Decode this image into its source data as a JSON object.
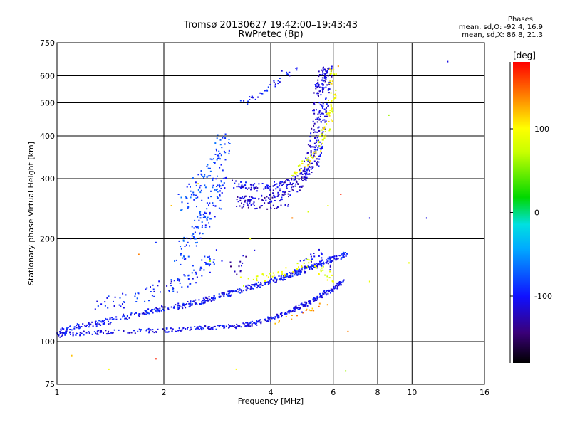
{
  "header": {
    "title_line1": "Tromsø 20130627 19:42:00–19:43:43",
    "title_line2": "RwPretec (8p)"
  },
  "phase_info": {
    "heading": "Phases",
    "line1": "mean, sd,O: -92.4, 16.9",
    "line2": "mean, sd,X: 86.8, 21.3"
  },
  "colorbar": {
    "unit_label": "[deg]",
    "range": [
      -180,
      180
    ],
    "ticks": [
      {
        "value": 100,
        "label": "100"
      },
      {
        "value": 0,
        "label": "0"
      },
      {
        "value": -100,
        "label": "-100"
      }
    ]
  },
  "chart_data": {
    "type": "scatter",
    "title": "Tromsø 20130627 19:42:00–19:43:43",
    "subtitle": "RwPretec (8p)",
    "xlabel": "Frequency [MHz]",
    "ylabel": "Stationary phase Virtual Height [km]",
    "xscale": "log",
    "yscale": "log",
    "xlim": [
      1,
      16
    ],
    "ylim": [
      75,
      750
    ],
    "xticks": [
      1,
      2,
      4,
      6,
      8,
      10,
      16
    ],
    "yticks": [
      75,
      100,
      200,
      300,
      400,
      500,
      600,
      750
    ],
    "grid": true,
    "color_encodes": "phase [deg]",
    "phase_stats": {
      "O": {
        "mean": -92.4,
        "sd": 16.9
      },
      "X": {
        "mean": 86.8,
        "sd": 21.3
      }
    },
    "series": [
      {
        "traces": [
          {
            "pts": [
              [
                1.0,
                105
              ],
              [
                1.1,
                110
              ],
              [
                1.3,
                113
              ],
              [
                1.5,
                117
              ],
              [
                1.8,
                122
              ],
              [
                2.0,
                125
              ],
              [
                2.3,
                128
              ],
              [
                2.6,
                132
              ],
              [
                2.9,
                136
              ],
              [
                3.2,
                140
              ],
              [
                3.6,
                145
              ],
              [
                4.0,
                150
              ],
              [
                4.4,
                155
              ],
              [
                4.8,
                160
              ],
              [
                5.2,
                165
              ],
              [
                5.6,
                170
              ],
              [
                6.0,
                175
              ],
              [
                6.5,
                180
              ]
            ],
            "phase": -100,
            "spread": 0.018,
            "density": 30
          },
          {
            "pts": [
              [
                1.0,
                104
              ],
              [
                1.2,
                106
              ],
              [
                1.6,
                107
              ],
              [
                2.0,
                108
              ],
              [
                2.4,
                109
              ],
              [
                2.8,
                110
              ],
              [
                3.2,
                111
              ],
              [
                3.6,
                113
              ],
              [
                4.0,
                117
              ],
              [
                4.4,
                121
              ],
              [
                4.8,
                126
              ],
              [
                5.2,
                131
              ],
              [
                5.6,
                137
              ],
              [
                6.0,
                143
              ],
              [
                6.4,
                150
              ]
            ],
            "phase": -105,
            "spread": 0.014,
            "density": 28
          },
          {
            "pts": [
              [
                1.3,
                127
              ],
              [
                1.6,
                134
              ],
              [
                2.0,
                143
              ],
              [
                2.3,
                150
              ],
              [
                2.6,
                165
              ],
              [
                2.8,
                180
              ]
            ],
            "phase": -95,
            "spread": 0.05,
            "density": 20
          },
          {
            "pts": [
              [
                2.3,
                250
              ],
              [
                2.5,
                280
              ],
              [
                2.7,
                320
              ],
              [
                2.9,
                360
              ],
              [
                3.0,
                390
              ]
            ],
            "phase": -80,
            "spread": 0.06,
            "density": 24
          },
          {
            "pts": [
              [
                2.2,
                170
              ],
              [
                2.4,
                200
              ],
              [
                2.6,
                230
              ],
              [
                2.8,
                260
              ],
              [
                2.9,
                300
              ]
            ],
            "phase": -85,
            "spread": 0.05,
            "density": 30
          },
          {
            "pts": [
              [
                3.2,
                290
              ],
              [
                3.5,
                285
              ],
              [
                4.0,
                283
              ],
              [
                4.5,
                290
              ],
              [
                5.0,
                305
              ],
              [
                5.3,
                330
              ],
              [
                5.5,
                380
              ],
              [
                5.6,
                450
              ],
              [
                5.7,
                520
              ],
              [
                5.75,
                600
              ],
              [
                5.8,
                640
              ]
            ],
            "phase": -110,
            "spread": 0.03,
            "density": 26
          },
          {
            "pts": [
              [
                3.2,
                260
              ],
              [
                3.5,
                258
              ],
              [
                4.0,
                262
              ],
              [
                4.4,
                270
              ],
              [
                4.8,
                290
              ],
              [
                5.1,
                330
              ],
              [
                5.3,
                400
              ],
              [
                5.4,
                480
              ],
              [
                5.5,
                560
              ],
              [
                5.6,
                630
              ]
            ],
            "phase": -115,
            "spread": 0.03,
            "density": 24
          },
          {
            "pts": [
              [
                3.2,
                250
              ],
              [
                3.6,
                248
              ],
              [
                4.0,
                247
              ],
              [
                4.5,
                250
              ]
            ],
            "phase": -125,
            "spread": 0.012,
            "density": 8
          },
          {
            "pts": [
              [
                3.3,
                500
              ],
              [
                3.6,
                520
              ],
              [
                4.0,
                560
              ],
              [
                4.4,
                600
              ],
              [
                4.7,
                640
              ]
            ],
            "phase": -100,
            "spread": 0.02,
            "density": 10
          },
          {
            "pts": [
              [
                4.6,
                310
              ],
              [
                5.0,
                330
              ],
              [
                5.4,
                360
              ],
              [
                5.7,
                410
              ],
              [
                5.9,
                470
              ],
              [
                6.0,
                540
              ],
              [
                6.0,
                620
              ]
            ],
            "phase": 95,
            "spread": 0.025,
            "density": 16
          },
          {
            "pts": [
              [
                3.3,
                150
              ],
              [
                3.8,
                153
              ],
              [
                4.3,
                158
              ],
              [
                4.8,
                165
              ],
              [
                5.2,
                172
              ],
              [
                5.6,
                160
              ],
              [
                6.0,
                150
              ]
            ],
            "phase": 90,
            "spread": 0.03,
            "density": 10
          },
          {
            "pts": [
              [
                4.0,
                113
              ],
              [
                4.6,
                118
              ],
              [
                5.2,
                124
              ],
              [
                5.8,
                130
              ]
            ],
            "phase": 130,
            "spread": 0.015,
            "density": 6
          },
          {
            "pts": [
              [
                4.8,
                170
              ],
              [
                5.2,
                175
              ],
              [
                5.6,
                180
              ],
              [
                6.0,
                165
              ]
            ],
            "phase": -110,
            "spread": 0.04,
            "density": 8
          },
          {
            "pts": [
              [
                3.1,
                160
              ],
              [
                3.3,
                165
              ],
              [
                3.5,
                170
              ]
            ],
            "phase": -125,
            "spread": 0.06,
            "density": 6
          }
        ]
      }
    ],
    "scattered_points": [
      [
        1.1,
        91,
        120
      ],
      [
        1.4,
        83,
        100
      ],
      [
        1.9,
        89,
        170
      ],
      [
        1.7,
        180,
        140
      ],
      [
        1.9,
        195,
        -90
      ],
      [
        2.1,
        250,
        120
      ],
      [
        2.2,
        270,
        -90
      ],
      [
        2.5,
        290,
        110
      ],
      [
        4.6,
        230,
        140
      ],
      [
        5.1,
        240,
        80
      ],
      [
        5.8,
        250,
        90
      ],
      [
        6.3,
        270,
        170
      ],
      [
        7.6,
        230,
        -110
      ],
      [
        11.0,
        230,
        -110
      ],
      [
        12.6,
        660,
        -110
      ],
      [
        8.6,
        460,
        60
      ],
      [
        6.6,
        107,
        140
      ],
      [
        9.8,
        170,
        90
      ],
      [
        6.5,
        82,
        60
      ],
      [
        3.2,
        83,
        100
      ],
      [
        4.9,
        122,
        -100
      ],
      [
        4.3,
        620,
        -110
      ],
      [
        3.5,
        200,
        90
      ],
      [
        3.6,
        185,
        -110
      ],
      [
        7.6,
        150,
        90
      ],
      [
        6.2,
        640,
        130
      ],
      [
        1.5,
        128,
        -90
      ],
      [
        2.7,
        172,
        60
      ]
    ]
  }
}
